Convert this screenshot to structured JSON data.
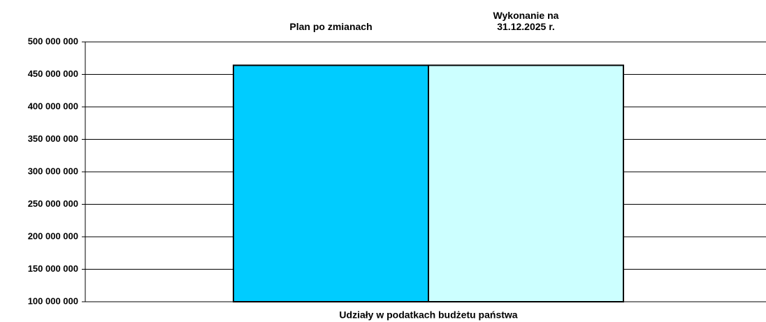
{
  "chart_data": {
    "type": "bar",
    "categories": [
      "Udziały w podatkach budżetu państwa"
    ],
    "series": [
      {
        "name": "Plan po zmianach",
        "color": "#00ccff",
        "values": [
          464000000
        ]
      },
      {
        "name": "Wykonanie  na\n31.12.2025 r.",
        "color": "#ccffff",
        "values": [
          464000000
        ]
      }
    ],
    "ylim": [
      100000000,
      500000000
    ],
    "yticks": [
      {
        "value": 100000000,
        "label": "100 000 000"
      },
      {
        "value": 150000000,
        "label": "150 000 000"
      },
      {
        "value": 200000000,
        "label": "200 000 000"
      },
      {
        "value": 250000000,
        "label": "250 000 000"
      },
      {
        "value": 300000000,
        "label": "300 000 000"
      },
      {
        "value": 350000000,
        "label": "350 000 000"
      },
      {
        "value": 400000000,
        "label": "400 000 000"
      },
      {
        "value": 450000000,
        "label": "450 000 000"
      },
      {
        "value": 500000000,
        "label": "500 000 000"
      }
    ],
    "grid": true
  }
}
